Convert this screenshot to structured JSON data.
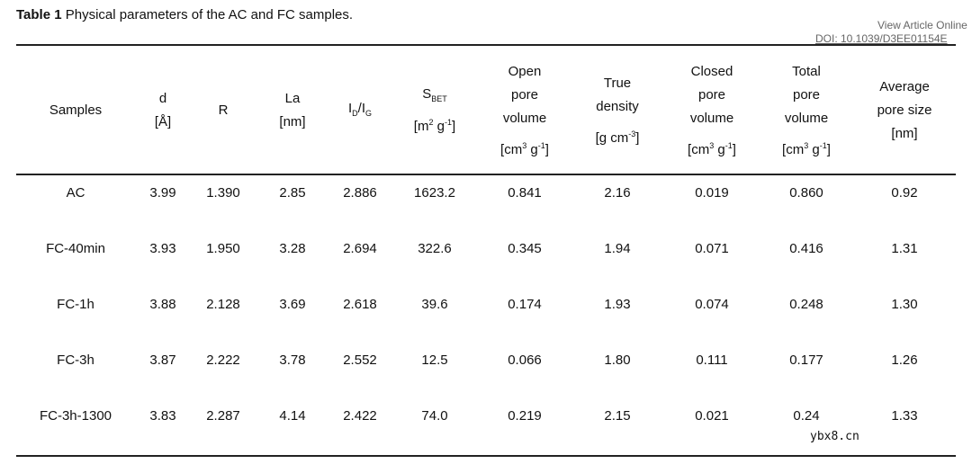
{
  "caption": {
    "label": "Table 1",
    "text": " Physical parameters of the AC and FC samples."
  },
  "view_article": "View Article Online",
  "doi": "DOI: 10.1039/D3EE01154E",
  "watermark": "ybx8.cn",
  "table": {
    "header": {
      "samples": "Samples",
      "d": [
        "d",
        "[Å]"
      ],
      "r": "R",
      "la": [
        "La",
        "[nm]"
      ],
      "id_ig": [
        "I",
        "D",
        "/I",
        "G"
      ],
      "sbet": {
        "name": [
          "S",
          "BET"
        ],
        "unit": [
          "[m",
          "2",
          " g",
          "-1",
          "]"
        ]
      },
      "open": {
        "name": [
          "Open",
          "pore",
          "volume"
        ],
        "unit": [
          "[cm",
          "3",
          " g",
          "-1",
          "]"
        ]
      },
      "true": {
        "name": [
          "True",
          "density"
        ],
        "unit": [
          "[g cm",
          "-3",
          "]"
        ]
      },
      "closed": {
        "name": [
          "Closed",
          "pore",
          "volume"
        ],
        "unit": [
          "[cm",
          "3",
          " g",
          "-1",
          "]"
        ]
      },
      "total": {
        "name": [
          "Total",
          "pore",
          "volume"
        ],
        "unit": [
          "[cm",
          "3",
          " g",
          "-1",
          "]"
        ]
      },
      "average": [
        "Average",
        "pore size",
        "[nm]"
      ]
    },
    "rows": [
      [
        "AC",
        "3.99",
        "1.390",
        "2.85",
        "2.886",
        "1623.2",
        "0.841",
        "2.16",
        "0.019",
        "0.860",
        "0.92"
      ],
      [
        "FC-40min",
        "3.93",
        "1.950",
        "3.28",
        "2.694",
        "322.6",
        "0.345",
        "1.94",
        "0.071",
        "0.416",
        "1.31"
      ],
      [
        "FC-1h",
        "3.88",
        "2.128",
        "3.69",
        "2.618",
        "39.6",
        "0.174",
        "1.93",
        "0.074",
        "0.248",
        "1.30"
      ],
      [
        "FC-3h",
        "3.87",
        "2.222",
        "3.78",
        "2.552",
        "12.5",
        "0.066",
        "1.80",
        "0.111",
        "0.177",
        "1.26"
      ],
      [
        "FC-3h-1300",
        "3.83",
        "2.287",
        "4.14",
        "2.422",
        "74.0",
        "0.219",
        "2.15",
        "0.021",
        "0.24",
        "1.33"
      ]
    ]
  }
}
